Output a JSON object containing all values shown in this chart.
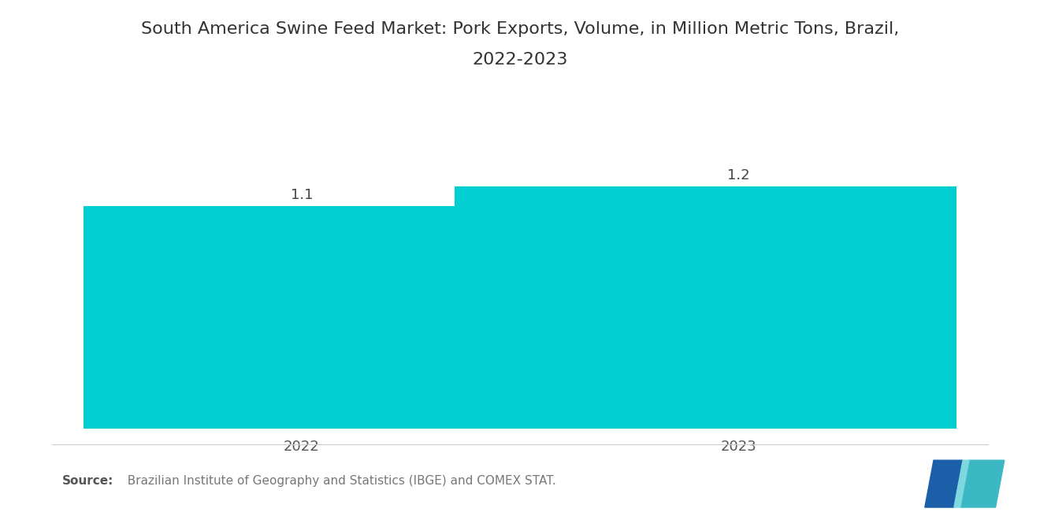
{
  "title_line1": "South America Swine Feed Market: Pork Exports, Volume, in Million Metric Tons, Brazil,",
  "title_line2": "2022-2023",
  "categories": [
    "2022",
    "2023"
  ],
  "values": [
    1.1,
    1.2
  ],
  "bar_color": "#00CED1",
  "background_color": "#ffffff",
  "value_labels": [
    "1.1",
    "1.2"
  ],
  "source_text": "  Brazilian Institute of Geography and Statistics (IBGE) and COMEX STAT.",
  "source_label": "Source:",
  "title_fontsize": 16,
  "label_fontsize": 13,
  "value_fontsize": 13,
  "source_fontsize": 11,
  "ylim": [
    0,
    1.5
  ],
  "bar_width": 0.65,
  "bar_positions": [
    0.25,
    0.75
  ],
  "xlim": [
    0.0,
    1.0
  ]
}
